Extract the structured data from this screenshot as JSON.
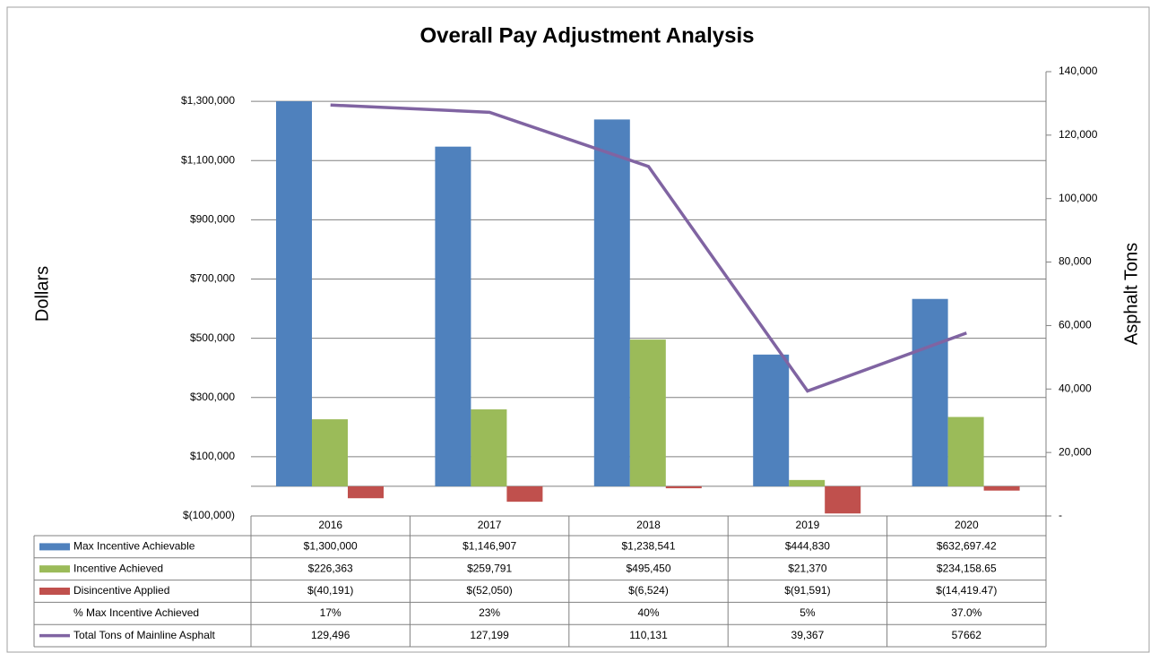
{
  "chart_data": {
    "type": "bar",
    "title": "Overall Pay Adjustment Analysis",
    "y_label": "Dollars",
    "y2_label": "Asphalt Tons",
    "categories": [
      "2016",
      "2017",
      "2018",
      "2019",
      "2020"
    ],
    "series": [
      {
        "name": "Max Incentive Achievable",
        "type": "bar",
        "color": "#4f81bd",
        "values": [
          1300000,
          1146907,
          1238541,
          444830,
          632697.42
        ],
        "value_labels": [
          "$1,300,000",
          "$1,146,907",
          "$1,238,541",
          "$444,830",
          "$632,697.42"
        ]
      },
      {
        "name": "Incentive Achieved",
        "type": "bar",
        "color": "#9bbb59",
        "values": [
          226363,
          259791,
          495450,
          21370,
          234158.65
        ],
        "value_labels": [
          "$226,363",
          "$259,791",
          "$495,450",
          "$21,370",
          "$234,158.65"
        ]
      },
      {
        "name": "Disincentive Applied",
        "type": "bar",
        "color": "#c0504d",
        "values": [
          -40191,
          -52050,
          -6524,
          -91591,
          -14419.47
        ],
        "value_labels": [
          "$(40,191)",
          "$(52,050)",
          "$(6,524)",
          "$(91,591)",
          "$(14,419.47)"
        ]
      },
      {
        "name": "% Max Incentive Achieved",
        "type": "none",
        "values": [
          17,
          23,
          40,
          5,
          37.0
        ],
        "value_labels": [
          "17%",
          "23%",
          "40%",
          "5%",
          "37.0%"
        ]
      },
      {
        "name": "Total Tons of Mainline Asphalt",
        "type": "line",
        "color": "#8064a2",
        "axis": "y2",
        "values": [
          129496,
          127199,
          110131,
          39367,
          57662
        ],
        "value_labels": [
          "129,496",
          "127,199",
          "110,131",
          "39,367",
          "57662"
        ]
      }
    ],
    "ylim": [
      -100000,
      1400000
    ],
    "yticks": [
      {
        "value": -100000,
        "label": "$(100,000)"
      },
      {
        "value": 100000,
        "label": "$100,000"
      },
      {
        "value": 300000,
        "label": "$300,000"
      },
      {
        "value": 500000,
        "label": "$500,000"
      },
      {
        "value": 700000,
        "label": "$700,000"
      },
      {
        "value": 900000,
        "label": "$900,000"
      },
      {
        "value": 1100000,
        "label": "$1,100,000"
      },
      {
        "value": 1300000,
        "label": "$1,300,000"
      }
    ],
    "y2lim": [
      0,
      140000
    ],
    "y2ticks": [
      {
        "value": 0,
        "label": "-"
      },
      {
        "value": 20000,
        "label": "20,000"
      },
      {
        "value": 40000,
        "label": "40,000"
      },
      {
        "value": 60000,
        "label": "60,000"
      },
      {
        "value": 80000,
        "label": "80,000"
      },
      {
        "value": 100000,
        "label": "100,000"
      },
      {
        "value": 120000,
        "label": "120,000"
      },
      {
        "value": 140000,
        "label": "140,000"
      }
    ],
    "grid": true
  }
}
